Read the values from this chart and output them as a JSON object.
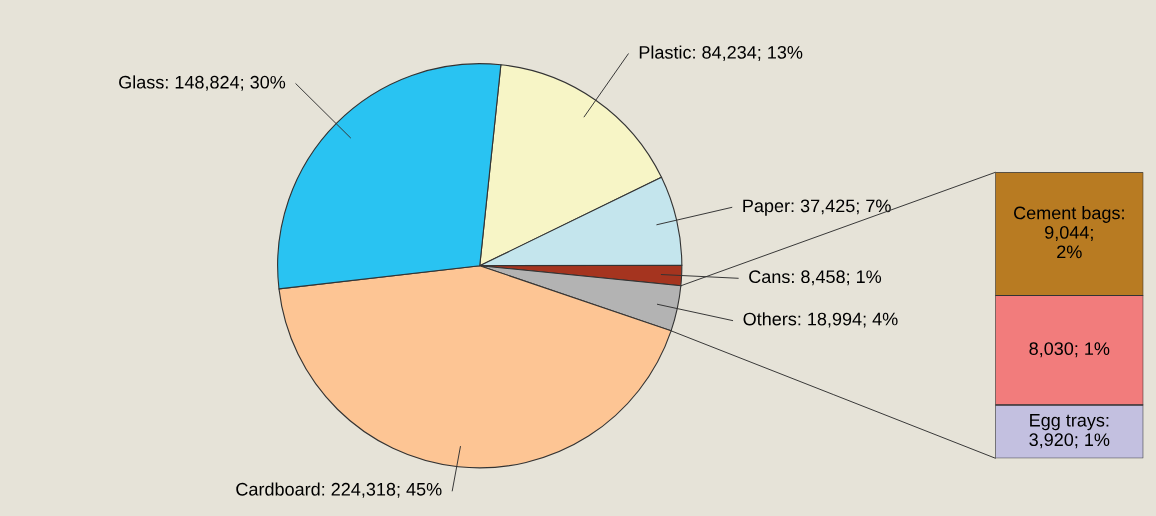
{
  "chart_data": [
    {
      "type": "pie",
      "categories": [
        "Plastic",
        "Paper",
        "Cans",
        "Others",
        "Cardboard",
        "Glass"
      ],
      "values": [
        84234,
        37425,
        8458,
        18994,
        224318,
        148824
      ],
      "colors": [
        "#f7f5c6",
        "#c4e5ed",
        "#a5341f",
        "#b3b3b3",
        "#fdc594",
        "#29c3f2"
      ],
      "value_labels": [
        "84,234; 13%",
        "37,425; 7%",
        "8,458; 1%",
        "18,994; 4%",
        "224,318; 45%",
        "148,824; 30%"
      ]
    },
    {
      "type": "bar",
      "stacked": true,
      "categories": [
        null
      ],
      "series": [
        {
          "name": "Egg trays:",
          "color": "#c3c0e0",
          "values": [
            3920
          ],
          "value_labels": [
            "3,920; 1%"
          ]
        },
        {
          "color": "#f27c7c",
          "values": [
            8030
          ],
          "value_labels": [
            "8,030; 1%"
          ]
        },
        {
          "name": "Cement bags:",
          "color": "#b87b22",
          "values": [
            9044
          ],
          "value_labels": [
            "9,044;\n2%"
          ]
        }
      ]
    }
  ]
}
